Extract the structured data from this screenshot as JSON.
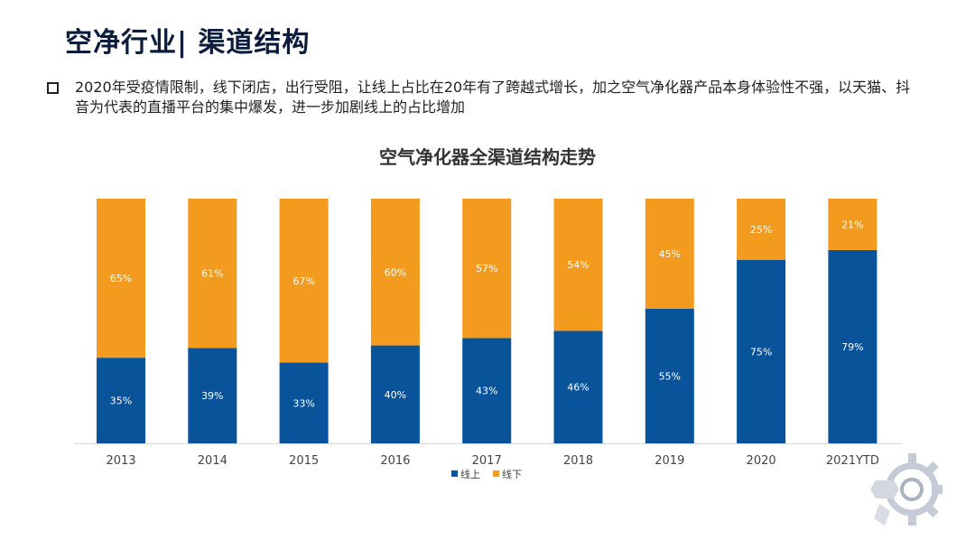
{
  "header": {
    "title": "空净行业| 渠道结构"
  },
  "bullet": {
    "text": "2020年受疫情限制，线下闭店，出行受阻，让线上占比在20年有了跨越式增长，加之空气净化器产品本身体验性不强，以天猫、抖音为代表的直播平台的集中爆发，进一步加剧线上的占比增加"
  },
  "chart_data": {
    "type": "bar",
    "stacked": true,
    "title": "空气净化器全渠道结构走势",
    "categories": [
      "2013",
      "2014",
      "2015",
      "2016",
      "2017",
      "2018",
      "2019",
      "2020",
      "2021YTD"
    ],
    "series": [
      {
        "name": "线上",
        "color": "#08539a",
        "values": [
          35,
          39,
          33,
          40,
          43,
          46,
          55,
          75,
          79
        ],
        "labels": [
          "35%",
          "39%",
          "33%",
          "40%",
          "43%",
          "46%",
          "55%",
          "75%",
          "79%"
        ]
      },
      {
        "name": "线下",
        "color": "#f29b1e",
        "values": [
          65,
          61,
          67,
          60,
          57,
          54,
          45,
          25,
          21
        ],
        "labels": [
          "65%",
          "61%",
          "67%",
          "60%",
          "57%",
          "54%",
          "45%",
          "25%",
          "21%"
        ]
      }
    ],
    "ylim": [
      0,
      100
    ],
    "legend": "bottom",
    "grid": false
  },
  "colors": {
    "online": "#08539a",
    "offline": "#f29b1e",
    "title": "#0b1c3c"
  }
}
